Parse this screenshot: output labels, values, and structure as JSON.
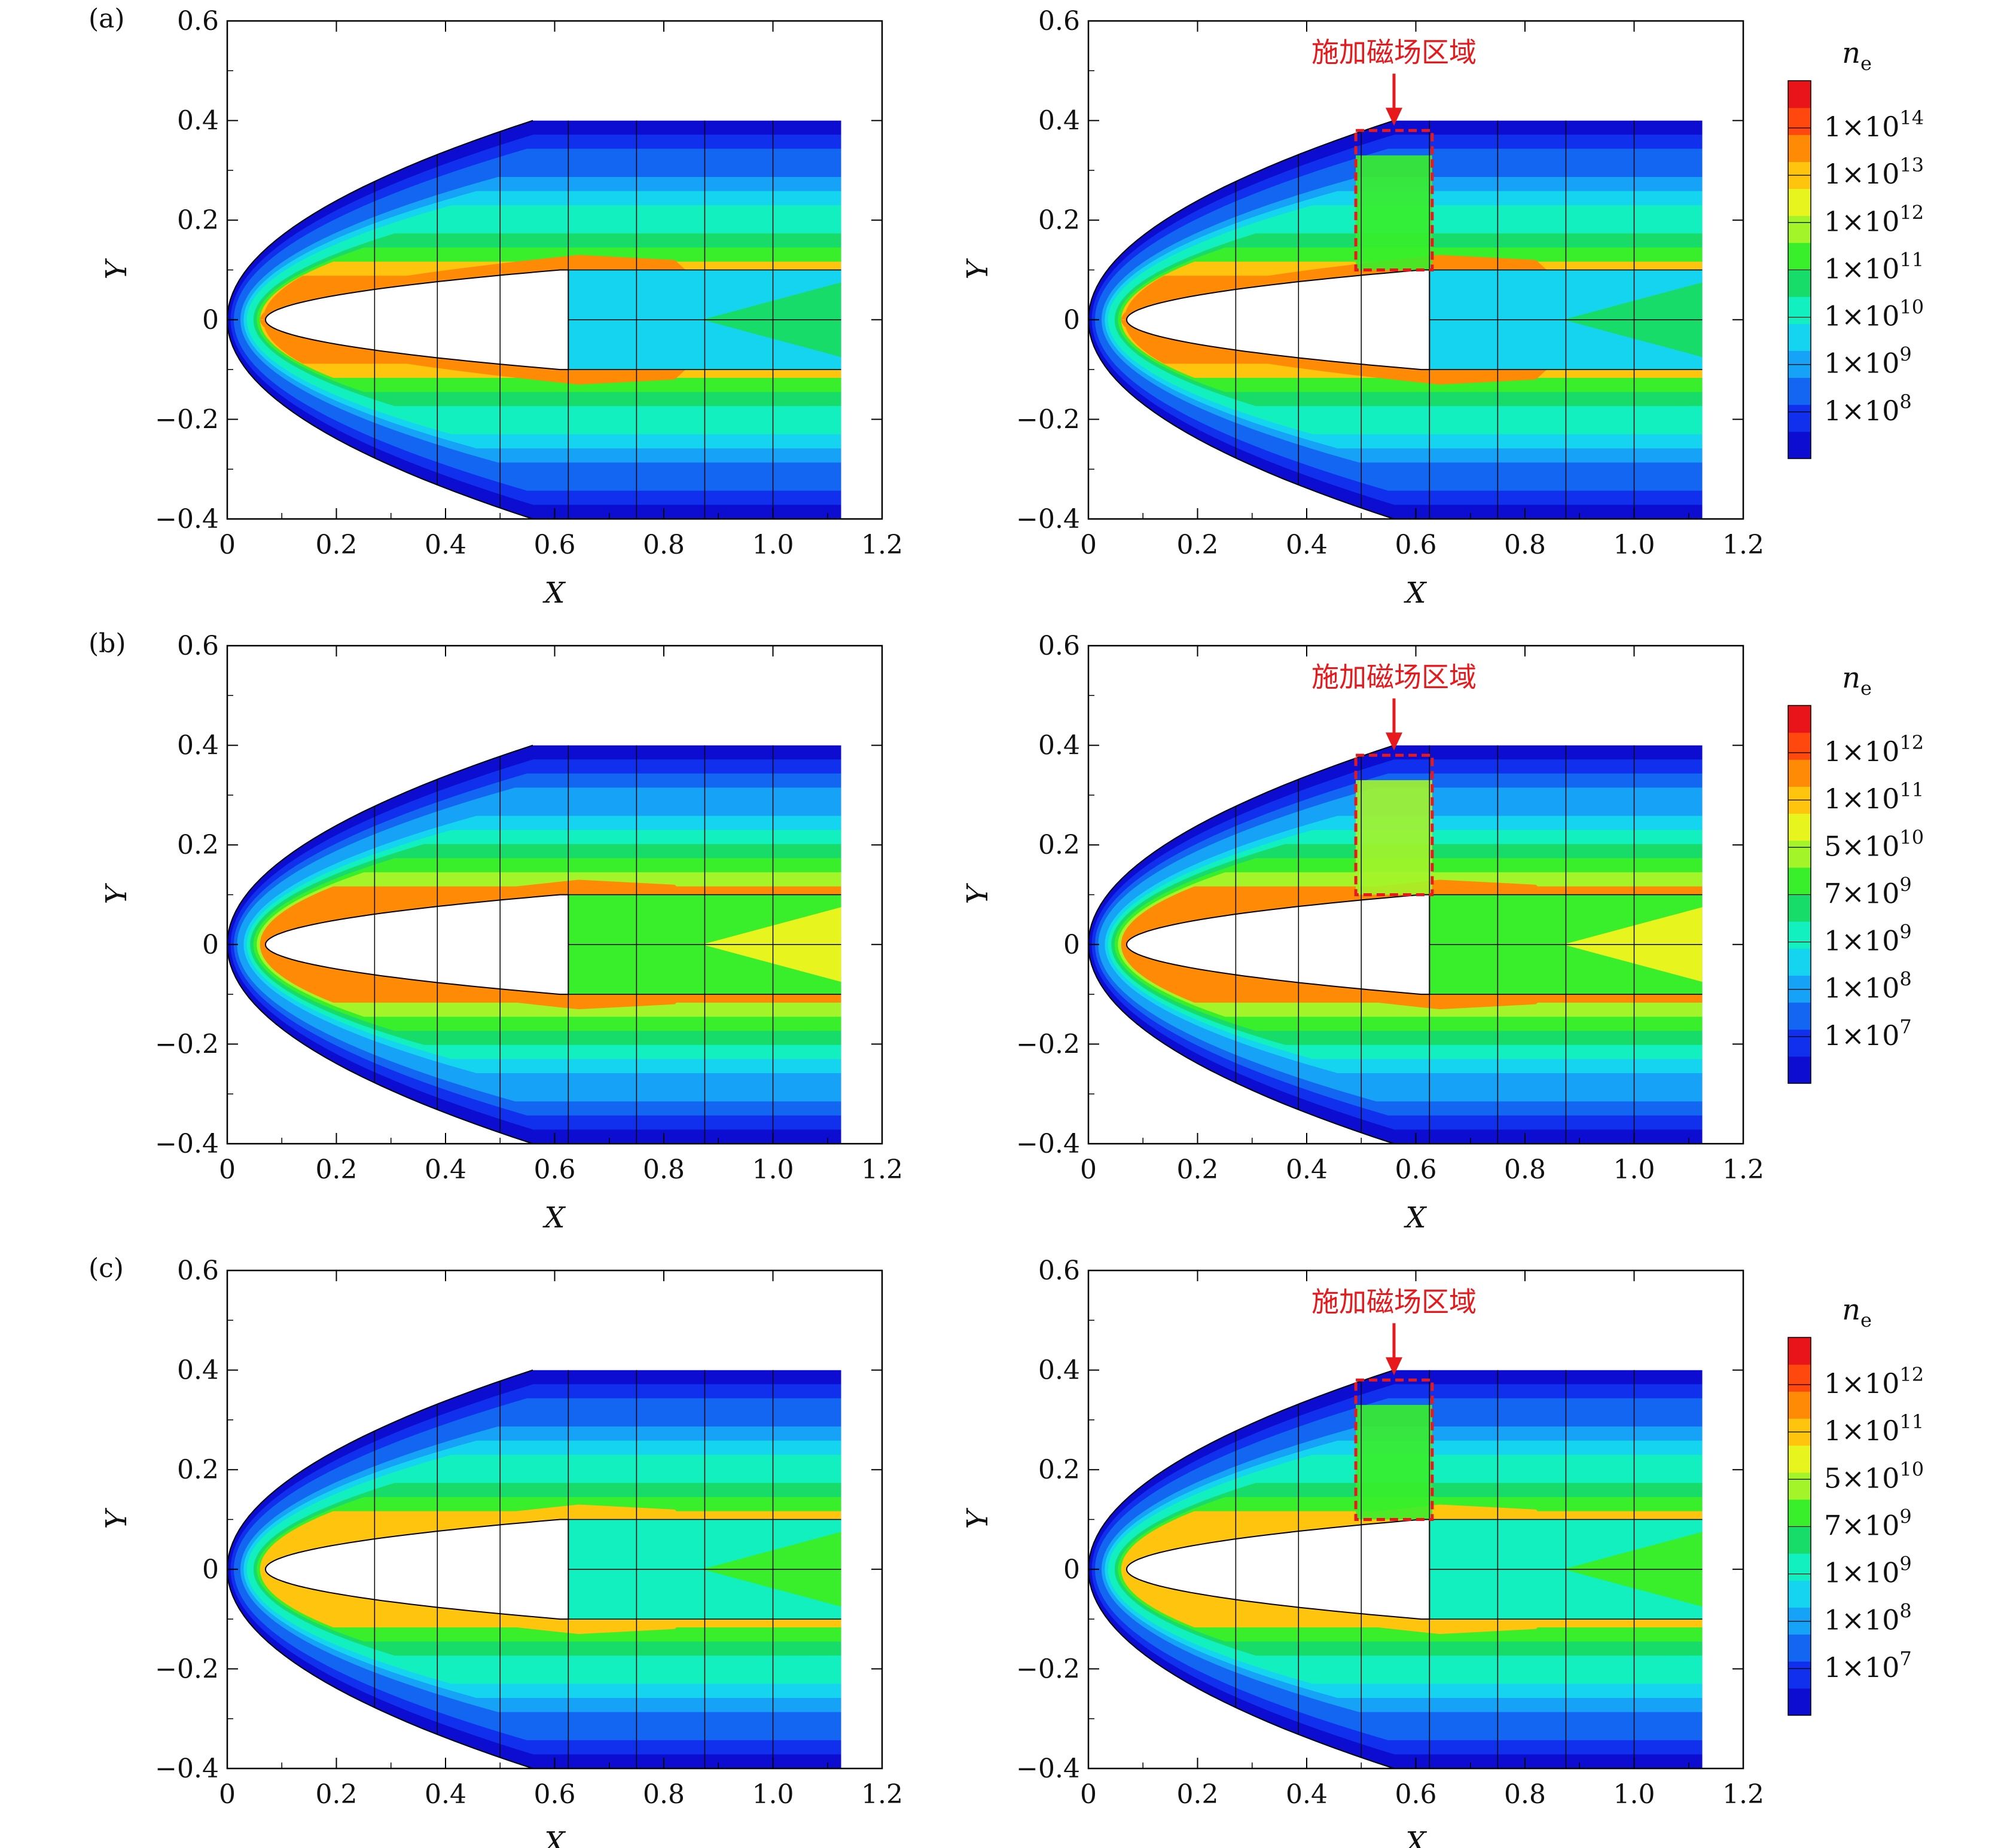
{
  "figure": {
    "panel_labels": [
      "(a)",
      "(b)",
      "(c)"
    ],
    "annotation": "施加磁场区域",
    "annotation_color": "#e8191c"
  },
  "chart_data": [
    {
      "type": "heatmap",
      "row": "a",
      "xlabel": "X",
      "ylabel": "Y",
      "xlim": [
        0,
        1.2
      ],
      "ylim": [
        -0.4,
        0.6
      ],
      "xticks": [
        "0",
        "0.2",
        "0.4",
        "0.6",
        "0.8",
        "1.0",
        "1.2"
      ],
      "yticks": [
        "−0.4",
        "−0.2",
        "0",
        "0.2",
        "0.4",
        "0.6"
      ],
      "magnetic_field": false,
      "wake_level": 6,
      "shock_level": 9,
      "layer_level": 11
    },
    {
      "type": "heatmap",
      "row": "a",
      "xlabel": "X",
      "ylabel": "Y",
      "xlim": [
        0,
        1.2
      ],
      "ylim": [
        -0.4,
        0.6
      ],
      "xticks": [
        "0",
        "0.2",
        "0.4",
        "0.6",
        "0.8",
        "1.0",
        "1.2"
      ],
      "yticks": [
        "−0.4",
        "−0.2",
        "0",
        "0.2",
        "0.4",
        "0.6"
      ],
      "magnetic_field": true,
      "field_region": {
        "x": [
          0.49,
          0.63
        ],
        "y": [
          0.1,
          0.38
        ]
      },
      "wake_level": 6,
      "shock_level": 9,
      "layer_level": 11
    },
    {
      "type": "heatmap",
      "row": "b",
      "xlabel": "X",
      "ylabel": "Y",
      "xlim": [
        0,
        1.2
      ],
      "ylim": [
        -0.4,
        0.6
      ],
      "xticks": [
        "0",
        "0.2",
        "0.4",
        "0.6",
        "0.8",
        "1.0",
        "1.2"
      ],
      "yticks": [
        "−0.4",
        "−0.2",
        "0",
        "0.2",
        "0.4",
        "0.6"
      ],
      "magnetic_field": false,
      "wake_level": 9,
      "shock_level": 10,
      "layer_level": 11
    },
    {
      "type": "heatmap",
      "row": "b",
      "xlabel": "X",
      "ylabel": "Y",
      "xlim": [
        0,
        1.2
      ],
      "ylim": [
        -0.4,
        0.6
      ],
      "xticks": [
        "0",
        "0.2",
        "0.4",
        "0.6",
        "0.8",
        "1.0",
        "1.2"
      ],
      "yticks": [
        "−0.4",
        "−0.2",
        "0",
        "0.2",
        "0.4",
        "0.6"
      ],
      "magnetic_field": true,
      "field_region": {
        "x": [
          0.49,
          0.63
        ],
        "y": [
          0.1,
          0.38
        ]
      },
      "wake_level": 9,
      "shock_level": 10,
      "layer_level": 11
    },
    {
      "type": "heatmap",
      "row": "c",
      "xlabel": "X",
      "ylabel": "Y",
      "xlim": [
        0,
        1.2
      ],
      "ylim": [
        -0.4,
        0.6
      ],
      "xticks": [
        "0",
        "0.2",
        "0.4",
        "0.6",
        "0.8",
        "1.0",
        "1.2"
      ],
      "yticks": [
        "−0.4",
        "−0.2",
        "0",
        "0.2",
        "0.4",
        "0.6"
      ],
      "magnetic_field": false,
      "wake_level": 7,
      "shock_level": 9,
      "layer_level": 10
    },
    {
      "type": "heatmap",
      "row": "c",
      "xlabel": "X",
      "ylabel": "Y",
      "xlim": [
        0,
        1.2
      ],
      "ylim": [
        -0.4,
        0.6
      ],
      "xticks": [
        "0",
        "0.2",
        "0.4",
        "0.6",
        "0.8",
        "1.0",
        "1.2"
      ],
      "yticks": [
        "−0.4",
        "−0.2",
        "0",
        "0.2",
        "0.4",
        "0.6"
      ],
      "magnetic_field": true,
      "field_region": {
        "x": [
          0.49,
          0.63
        ],
        "y": [
          0.1,
          0.38
        ]
      },
      "wake_level": 7,
      "shock_level": 9,
      "layer_level": 10
    }
  ],
  "colorbars": [
    {
      "row": "a",
      "title": "n_e",
      "title_main": "n",
      "title_sub": "e",
      "labels": [
        {
          "base": "1×10",
          "exp": "14"
        },
        {
          "base": "1×10",
          "exp": "13"
        },
        {
          "base": "1×10",
          "exp": "12"
        },
        {
          "base": "1×10",
          "exp": "11"
        },
        {
          "base": "1×10",
          "exp": "10"
        },
        {
          "base": "1×10",
          "exp": "9"
        },
        {
          "base": "1×10",
          "exp": "8"
        }
      ]
    },
    {
      "row": "b",
      "title": "n_e",
      "title_main": "n",
      "title_sub": "e",
      "labels": [
        {
          "base": "1×10",
          "exp": "12"
        },
        {
          "base": "1×10",
          "exp": "11"
        },
        {
          "base": "5×10",
          "exp": "10"
        },
        {
          "base": "7×10",
          "exp": "9"
        },
        {
          "base": "1×10",
          "exp": "9"
        },
        {
          "base": "1×10",
          "exp": "8"
        },
        {
          "base": "1×10",
          "exp": "7"
        }
      ]
    },
    {
      "row": "c",
      "title": "n_e",
      "title_main": "n",
      "title_sub": "e",
      "labels": [
        {
          "base": "1×10",
          "exp": "12"
        },
        {
          "base": "1×10",
          "exp": "11"
        },
        {
          "base": "5×10",
          "exp": "10"
        },
        {
          "base": "7×10",
          "exp": "9"
        },
        {
          "base": "1×10",
          "exp": "9"
        },
        {
          "base": "1×10",
          "exp": "8"
        },
        {
          "base": "1×10",
          "exp": "7"
        }
      ]
    }
  ],
  "palette": [
    "#0d0dd2",
    "#1030ee",
    "#1366f2",
    "#16a2f7",
    "#15d4ef",
    "#12f0c0",
    "#18dc6a",
    "#39ee2a",
    "#a4f42a",
    "#e8f41e",
    "#ffc40e",
    "#ff8a06",
    "#ff480e",
    "#e8141a"
  ]
}
